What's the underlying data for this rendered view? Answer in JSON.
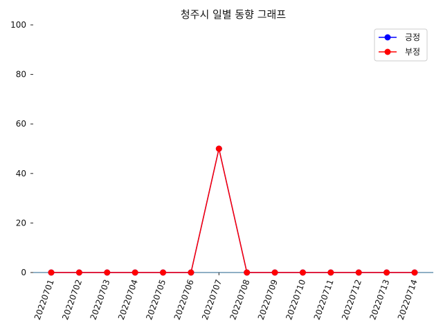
{
  "chart_data": {
    "type": "line",
    "title": "청주시 일별 동향 그래프",
    "xlabel": "",
    "ylabel": "",
    "x": [
      "20220701",
      "20220702",
      "20220703",
      "20220704",
      "20220705",
      "20220706",
      "20220707",
      "20220708",
      "20220709",
      "20220710",
      "20220711",
      "20220712",
      "20220713",
      "20220714"
    ],
    "series": [
      {
        "name": "긍정",
        "color": "#0000ff",
        "values": [
          0,
          0,
          0,
          0,
          0,
          0,
          50,
          0,
          0,
          0,
          0,
          0,
          0,
          0
        ]
      },
      {
        "name": "부정",
        "color": "#ff0000",
        "values": [
          0,
          0,
          0,
          0,
          0,
          0,
          50,
          0,
          0,
          0,
          0,
          0,
          0,
          0
        ]
      }
    ],
    "ylim": [
      0,
      100
    ],
    "yticks": [
      0,
      20,
      40,
      60,
      80,
      100
    ],
    "grid": false,
    "legend_position": "top-right",
    "x_axis_color": "#1f5f8b"
  }
}
